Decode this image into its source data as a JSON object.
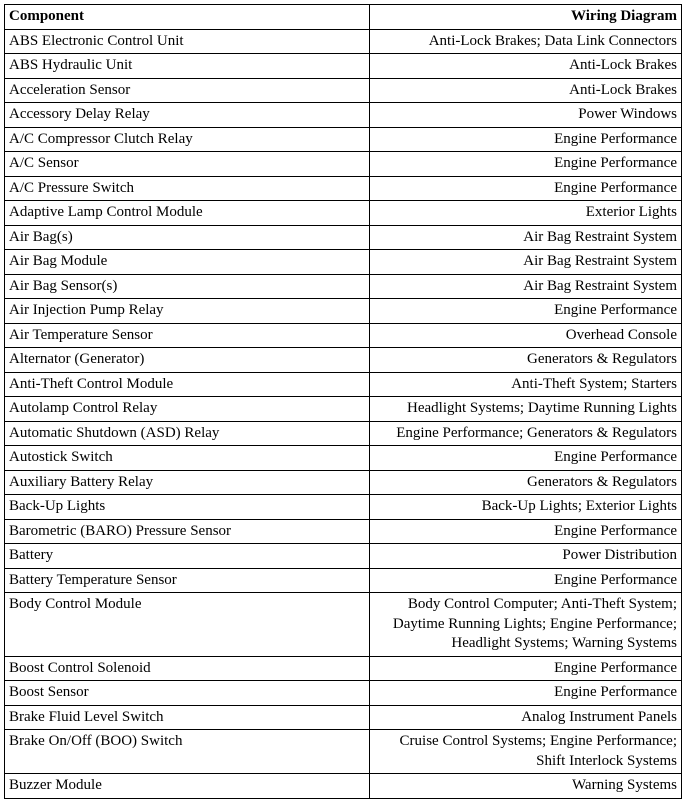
{
  "table": {
    "columns": [
      "Component",
      "Wiring Diagram"
    ],
    "col_align": [
      "left",
      "right"
    ],
    "header_fontweight": "bold",
    "font_family": "Times New Roman",
    "font_size_pt": 11,
    "border_color": "#000000",
    "background_color": "#ffffff",
    "text_color": "#000000",
    "rows": [
      [
        "ABS Electronic Control Unit",
        "Anti-Lock Brakes; Data Link Connectors"
      ],
      [
        "ABS Hydraulic Unit",
        "Anti-Lock Brakes"
      ],
      [
        "Acceleration Sensor",
        "Anti-Lock Brakes"
      ],
      [
        "Accessory Delay Relay",
        "Power Windows"
      ],
      [
        "A/C Compressor Clutch Relay",
        "Engine Performance"
      ],
      [
        "A/C Sensor",
        "Engine Performance"
      ],
      [
        "A/C Pressure Switch",
        "Engine Performance"
      ],
      [
        "Adaptive Lamp Control Module",
        "Exterior Lights"
      ],
      [
        "Air Bag(s)",
        "Air Bag Restraint System"
      ],
      [
        "Air Bag Module",
        "Air Bag Restraint System"
      ],
      [
        "Air Bag Sensor(s)",
        "Air Bag Restraint System"
      ],
      [
        "Air Injection Pump Relay",
        "Engine Performance"
      ],
      [
        "Air Temperature Sensor",
        "Overhead Console"
      ],
      [
        "Alternator (Generator)",
        "Generators & Regulators"
      ],
      [
        "Anti-Theft Control Module",
        "Anti-Theft System; Starters"
      ],
      [
        "Autolamp Control Relay",
        "Headlight Systems; Daytime Running Lights"
      ],
      [
        "Automatic Shutdown (ASD) Relay",
        "Engine Performance; Generators & Regulators"
      ],
      [
        "Autostick Switch",
        "Engine Performance"
      ],
      [
        "Auxiliary Battery Relay",
        "Generators & Regulators"
      ],
      [
        "Back-Up Lights",
        "Back-Up Lights; Exterior Lights"
      ],
      [
        "Barometric (BARO) Pressure Sensor",
        "Engine Performance"
      ],
      [
        "Battery",
        "Power Distribution"
      ],
      [
        "Battery Temperature Sensor",
        "Engine Performance"
      ],
      [
        "Body Control Module",
        "Body Control Computer; Anti-Theft System; Daytime Running Lights; Engine Performance; Headlight Systems; Warning Systems"
      ],
      [
        "Boost Control Solenoid",
        "Engine Performance"
      ],
      [
        "Boost Sensor",
        "Engine Performance"
      ],
      [
        "Brake Fluid Level Switch",
        "Analog Instrument Panels"
      ],
      [
        "Brake On/Off (BOO) Switch",
        "Cruise Control Systems; Engine Performance; Shift Interlock Systems"
      ],
      [
        "Buzzer Module",
        "Warning Systems"
      ]
    ]
  }
}
